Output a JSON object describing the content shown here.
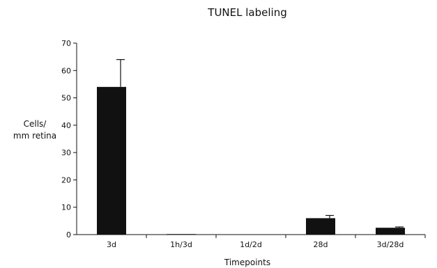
{
  "chart_data": {
    "type": "bar",
    "title": "TUNEL labeling",
    "xlabel": "Timepoints",
    "ylabel": [
      "Cells/",
      "mm retina"
    ],
    "categories": [
      "3d",
      "1h/3d",
      "1d/2d",
      "28d",
      "3d/28d"
    ],
    "values": [
      54,
      0.2,
      0,
      6,
      2.5
    ],
    "errors": [
      10,
      0,
      0,
      1,
      0.3
    ],
    "ylim": [
      0,
      70
    ],
    "yticks": [
      "0",
      "10",
      "20",
      "30",
      "40",
      "50",
      "60",
      "70"
    ],
    "bar_color": "#111111",
    "grid": false,
    "legend": "none"
  }
}
